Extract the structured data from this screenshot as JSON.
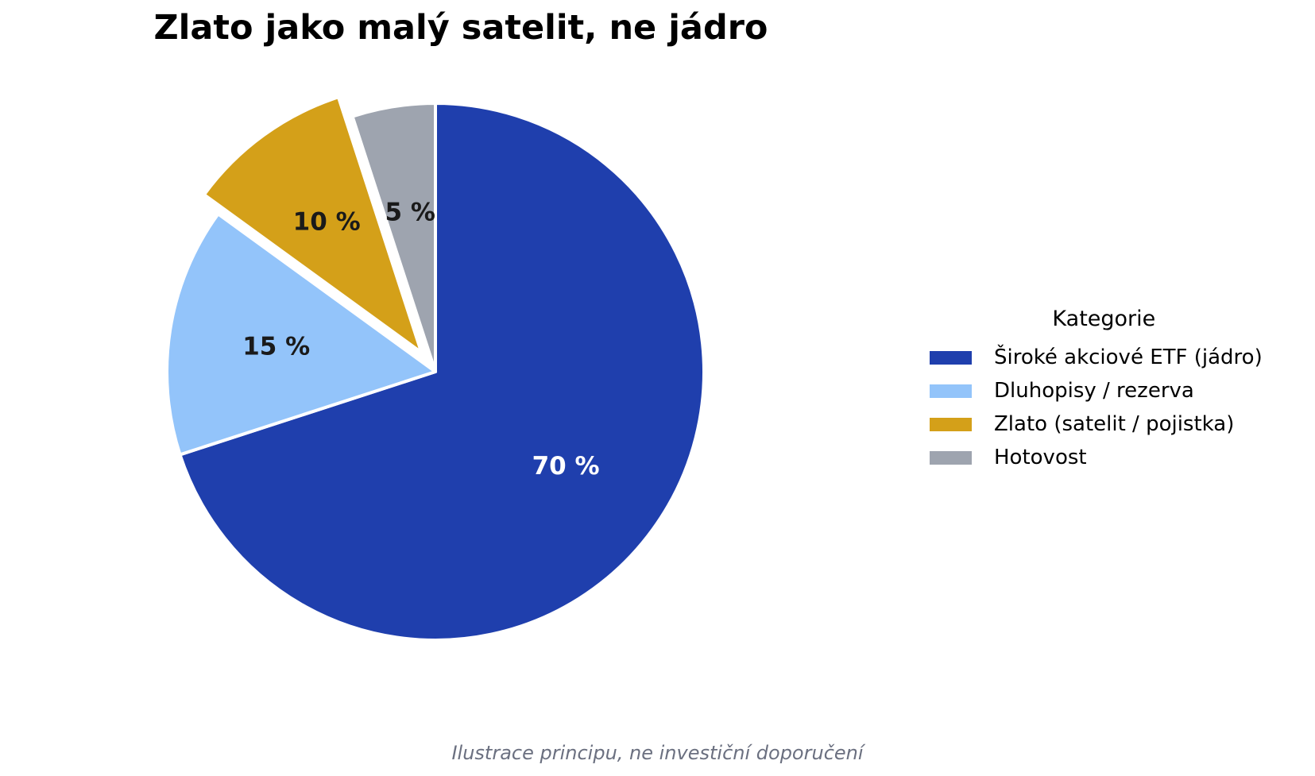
{
  "chart_data": {
    "type": "pie",
    "title": "Zlato jako malý satelit, ne jádro",
    "footnote": "Ilustrace principu, ne investiční doporučení",
    "legend": {
      "title": "Kategorie",
      "placement": "right"
    },
    "start_angle_deg": 90,
    "direction": "clockwise",
    "slices": [
      {
        "label": "Široké akciové ETF (jádro)",
        "value": 70,
        "display": "70 %",
        "color": "#1f3fad",
        "text_color": "#ffffff",
        "exploded": false
      },
      {
        "label": "Dluhopisy / rezerva",
        "value": 15,
        "display": "15 %",
        "color": "#93c4fa",
        "text_color": "#1a1a1a",
        "exploded": false
      },
      {
        "label": "Zlato (satelit / pojistka)",
        "value": 10,
        "display": "10 %",
        "color": "#d4a019",
        "text_color": "#1a1a1a",
        "exploded": true
      },
      {
        "label": "Hotovost",
        "value": 5,
        "display": "5 %",
        "color": "#9ea4af",
        "text_color": "#1a1a1a",
        "exploded": false
      }
    ]
  }
}
